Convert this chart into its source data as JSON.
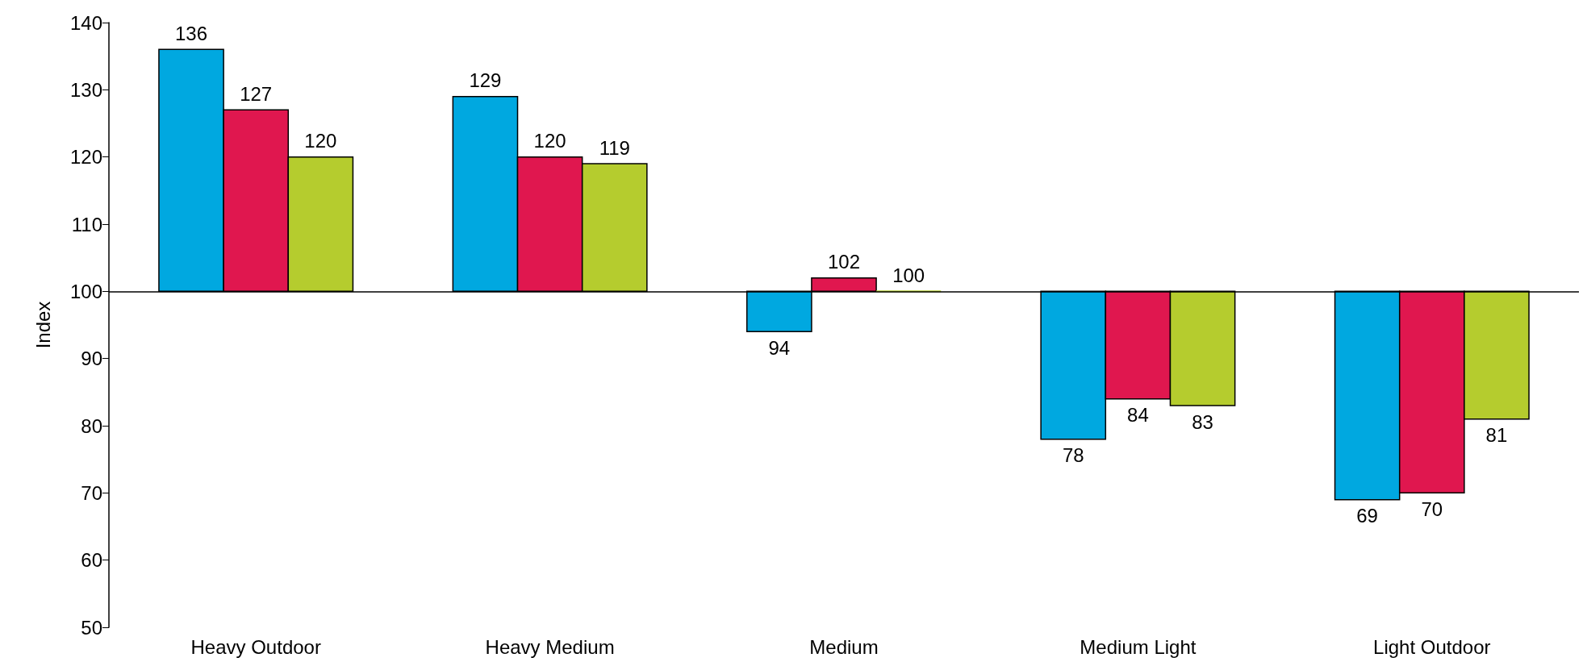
{
  "chart_data": {
    "type": "bar",
    "ylabel": "Index",
    "categories": [
      "Heavy Outdoor",
      "Heavy Medium",
      "Medium",
      "Medium Light",
      "Light Outdoor"
    ],
    "series": [
      {
        "color": "#00a8e0",
        "base": [
          100,
          100,
          100,
          100,
          100
        ],
        "values": [
          36,
          29,
          -6,
          -22,
          -31
        ],
        "value_labels": [
          "136",
          "129",
          "94",
          "78",
          "69"
        ]
      },
      {
        "color": "#e0174f",
        "base": [
          100,
          100,
          100,
          100,
          100
        ],
        "values": [
          27,
          20,
          2,
          -16,
          -30
        ],
        "value_labels": [
          "127",
          "120",
          "102",
          "84",
          "70"
        ]
      },
      {
        "color": "#b5cc2e",
        "base": [
          100,
          100,
          100,
          100,
          100
        ],
        "values": [
          20,
          19,
          0,
          -17,
          -19
        ],
        "value_labels": [
          "120",
          "119",
          "100",
          "83",
          "81"
        ]
      }
    ],
    "ylim": [
      50,
      140
    ],
    "yticks": [
      50,
      60,
      70,
      80,
      90,
      100,
      110,
      120,
      130,
      140
    ],
    "ref_lines": [
      {
        "axis": "y",
        "value": 100,
        "color": "#000000"
      }
    ],
    "grid": false
  }
}
